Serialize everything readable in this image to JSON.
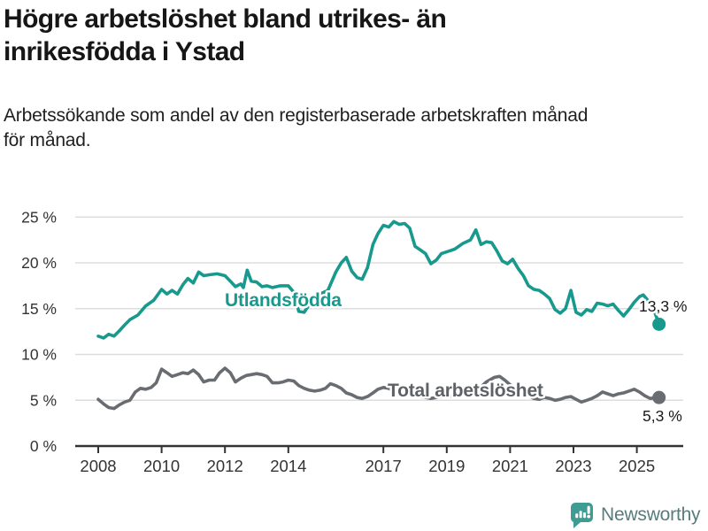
{
  "header": {
    "title": "Högre arbetslöshet bland utrikes- än inrikesfödda i Ystad",
    "subtitle": "Arbetssökande som andel av den registerbaserade arbetskraften månad för månad."
  },
  "footer": {
    "brand": "Newsworthy",
    "brand_icon": "speech-bubble-bar-chart-icon"
  },
  "colors": {
    "accent_teal": "#18998E",
    "line_gray": "#696C70",
    "label_gray": "#5E6166",
    "grid": "#DDDDDD",
    "axis": "#333333",
    "text_dark": "#1A1A1A",
    "logo_teal": "#3E9C94",
    "logo_text": "#567D7B"
  },
  "chart_data": {
    "type": "line",
    "title": "Högre arbetslöshet bland utrikes- än inrikesfödda i Ystad",
    "subtitle": "Arbetssökande som andel av den registerbaserade arbetskraften månad för månad.",
    "xlabel": "",
    "ylabel": "",
    "grid": true,
    "legend_position": "inline-labels",
    "x_axis": {
      "tick_labels": [
        "2008",
        "2010",
        "2012",
        "2014",
        "2017",
        "2019",
        "2021",
        "2023",
        "2025"
      ],
      "tick_years": [
        2008,
        2010,
        2012,
        2014,
        2017,
        2019,
        2021,
        2023,
        2025
      ],
      "range": [
        2007.3,
        2026.4
      ]
    },
    "y_axis": {
      "tick_labels": [
        "0 %",
        "5 %",
        "10 %",
        "15 %",
        "20 %",
        "25 %"
      ],
      "tick_values": [
        0,
        5,
        10,
        15,
        20,
        25
      ],
      "ylim": [
        0,
        27.4
      ],
      "unit": "%"
    },
    "series": [
      {
        "name": "Total arbetslöshet",
        "color": "#696C70",
        "label_color": "#5E6166",
        "end_label": "5,3 %",
        "end_value": 5.3,
        "points": [
          [
            2008.0,
            5.1
          ],
          [
            2008.17,
            4.6
          ],
          [
            2008.33,
            4.2
          ],
          [
            2008.5,
            4.1
          ],
          [
            2008.67,
            4.5
          ],
          [
            2008.83,
            4.8
          ],
          [
            2009.0,
            5.0
          ],
          [
            2009.17,
            5.9
          ],
          [
            2009.33,
            6.3
          ],
          [
            2009.5,
            6.2
          ],
          [
            2009.67,
            6.4
          ],
          [
            2009.83,
            6.9
          ],
          [
            2010.0,
            8.4
          ],
          [
            2010.17,
            8.0
          ],
          [
            2010.33,
            7.6
          ],
          [
            2010.5,
            7.8
          ],
          [
            2010.67,
            8.0
          ],
          [
            2010.83,
            7.9
          ],
          [
            2011.0,
            8.3
          ],
          [
            2011.17,
            7.8
          ],
          [
            2011.33,
            7.0
          ],
          [
            2011.5,
            7.2
          ],
          [
            2011.67,
            7.2
          ],
          [
            2011.83,
            8.0
          ],
          [
            2012.0,
            8.5
          ],
          [
            2012.17,
            8.0
          ],
          [
            2012.33,
            7.0
          ],
          [
            2012.5,
            7.4
          ],
          [
            2012.67,
            7.7
          ],
          [
            2012.83,
            7.8
          ],
          [
            2013.0,
            7.9
          ],
          [
            2013.17,
            7.8
          ],
          [
            2013.33,
            7.6
          ],
          [
            2013.5,
            6.9
          ],
          [
            2013.67,
            6.9
          ],
          [
            2013.83,
            7.0
          ],
          [
            2014.0,
            7.2
          ],
          [
            2014.17,
            7.1
          ],
          [
            2014.33,
            6.6
          ],
          [
            2014.5,
            6.3
          ],
          [
            2014.67,
            6.1
          ],
          [
            2014.83,
            6.0
          ],
          [
            2015.0,
            6.1
          ],
          [
            2015.17,
            6.3
          ],
          [
            2015.33,
            6.8
          ],
          [
            2015.5,
            6.6
          ],
          [
            2015.67,
            6.3
          ],
          [
            2015.83,
            5.8
          ],
          [
            2016.0,
            5.6
          ],
          [
            2016.17,
            5.3
          ],
          [
            2016.33,
            5.2
          ],
          [
            2016.5,
            5.4
          ],
          [
            2016.67,
            5.8
          ],
          [
            2016.83,
            6.2
          ],
          [
            2017.0,
            6.4
          ],
          [
            2017.17,
            6.3
          ],
          [
            2017.33,
            6.0
          ],
          [
            2017.5,
            5.8
          ],
          [
            2017.67,
            5.7
          ],
          [
            2017.83,
            5.6
          ],
          [
            2018.0,
            5.5
          ],
          [
            2018.17,
            5.4
          ],
          [
            2018.33,
            5.3
          ],
          [
            2018.5,
            5.2
          ],
          [
            2018.67,
            5.3
          ],
          [
            2018.83,
            5.4
          ],
          [
            2019.0,
            5.4
          ],
          [
            2019.25,
            5.5
          ],
          [
            2019.5,
            5.6
          ],
          [
            2019.75,
            5.8
          ],
          [
            2020.0,
            6.2
          ],
          [
            2020.25,
            7.0
          ],
          [
            2020.5,
            7.5
          ],
          [
            2020.67,
            7.6
          ],
          [
            2020.83,
            7.2
          ],
          [
            2021.0,
            6.7
          ],
          [
            2021.17,
            6.3
          ],
          [
            2021.33,
            6.0
          ],
          [
            2021.5,
            5.6
          ],
          [
            2021.75,
            5.2
          ],
          [
            2021.92,
            5.1
          ],
          [
            2022.08,
            5.3
          ],
          [
            2022.25,
            5.2
          ],
          [
            2022.42,
            5.0
          ],
          [
            2022.58,
            5.1
          ],
          [
            2022.75,
            5.3
          ],
          [
            2022.92,
            5.4
          ],
          [
            2023.08,
            5.1
          ],
          [
            2023.25,
            4.8
          ],
          [
            2023.42,
            5.0
          ],
          [
            2023.58,
            5.2
          ],
          [
            2023.75,
            5.5
          ],
          [
            2023.92,
            5.9
          ],
          [
            2024.08,
            5.7
          ],
          [
            2024.25,
            5.5
          ],
          [
            2024.42,
            5.7
          ],
          [
            2024.58,
            5.8
          ],
          [
            2024.75,
            6.0
          ],
          [
            2024.92,
            6.2
          ],
          [
            2025.08,
            5.9
          ],
          [
            2025.25,
            5.5
          ],
          [
            2025.42,
            5.2
          ],
          [
            2025.7,
            5.3
          ]
        ]
      },
      {
        "name": "Utlandsfödda",
        "color": "#18998E",
        "label_color": "#18998E",
        "end_label": "13,3 %",
        "end_value": 13.3,
        "points": [
          [
            2008.0,
            12.0
          ],
          [
            2008.17,
            11.8
          ],
          [
            2008.33,
            12.2
          ],
          [
            2008.5,
            12.0
          ],
          [
            2008.67,
            12.6
          ],
          [
            2008.83,
            13.2
          ],
          [
            2009.0,
            13.8
          ],
          [
            2009.25,
            14.3
          ],
          [
            2009.5,
            15.3
          ],
          [
            2009.75,
            15.9
          ],
          [
            2010.0,
            17.1
          ],
          [
            2010.17,
            16.6
          ],
          [
            2010.33,
            17.0
          ],
          [
            2010.5,
            16.6
          ],
          [
            2010.67,
            17.6
          ],
          [
            2010.83,
            18.3
          ],
          [
            2011.0,
            17.8
          ],
          [
            2011.17,
            19.0
          ],
          [
            2011.33,
            18.6
          ],
          [
            2011.5,
            18.7
          ],
          [
            2011.75,
            18.8
          ],
          [
            2012.0,
            18.6
          ],
          [
            2012.17,
            18.0
          ],
          [
            2012.33,
            17.4
          ],
          [
            2012.5,
            17.7
          ],
          [
            2012.58,
            17.3
          ],
          [
            2012.7,
            19.2
          ],
          [
            2012.83,
            18.0
          ],
          [
            2013.0,
            17.9
          ],
          [
            2013.17,
            17.4
          ],
          [
            2013.33,
            17.5
          ],
          [
            2013.5,
            17.3
          ],
          [
            2013.75,
            17.5
          ],
          [
            2014.0,
            17.5
          ],
          [
            2014.17,
            16.8
          ],
          [
            2014.33,
            14.7
          ],
          [
            2014.5,
            14.6
          ],
          [
            2014.67,
            15.5
          ],
          [
            2014.83,
            16.2
          ],
          [
            2015.0,
            16.6
          ],
          [
            2015.25,
            17.0
          ],
          [
            2015.5,
            19.0
          ],
          [
            2015.67,
            20.0
          ],
          [
            2015.83,
            20.6
          ],
          [
            2016.0,
            19.1
          ],
          [
            2016.17,
            18.4
          ],
          [
            2016.33,
            18.2
          ],
          [
            2016.5,
            19.5
          ],
          [
            2016.67,
            22.0
          ],
          [
            2016.83,
            23.2
          ],
          [
            2017.0,
            24.1
          ],
          [
            2017.17,
            23.9
          ],
          [
            2017.33,
            24.5
          ],
          [
            2017.5,
            24.2
          ],
          [
            2017.67,
            24.3
          ],
          [
            2017.83,
            23.8
          ],
          [
            2018.0,
            21.8
          ],
          [
            2018.17,
            21.4
          ],
          [
            2018.33,
            21.0
          ],
          [
            2018.5,
            19.9
          ],
          [
            2018.67,
            20.3
          ],
          [
            2018.83,
            21.0
          ],
          [
            2019.0,
            21.2
          ],
          [
            2019.25,
            21.5
          ],
          [
            2019.5,
            22.1
          ],
          [
            2019.75,
            22.5
          ],
          [
            2019.92,
            23.6
          ],
          [
            2020.08,
            22.0
          ],
          [
            2020.25,
            22.3
          ],
          [
            2020.42,
            22.2
          ],
          [
            2020.58,
            21.3
          ],
          [
            2020.75,
            20.2
          ],
          [
            2020.92,
            19.9
          ],
          [
            2021.08,
            20.4
          ],
          [
            2021.25,
            19.4
          ],
          [
            2021.42,
            18.6
          ],
          [
            2021.58,
            17.5
          ],
          [
            2021.75,
            17.1
          ],
          [
            2021.92,
            17.0
          ],
          [
            2022.08,
            16.6
          ],
          [
            2022.25,
            16.1
          ],
          [
            2022.42,
            14.9
          ],
          [
            2022.58,
            14.5
          ],
          [
            2022.75,
            15.0
          ],
          [
            2022.92,
            17.0
          ],
          [
            2023.08,
            14.6
          ],
          [
            2023.25,
            14.3
          ],
          [
            2023.42,
            14.9
          ],
          [
            2023.58,
            14.7
          ],
          [
            2023.75,
            15.6
          ],
          [
            2023.92,
            15.5
          ],
          [
            2024.08,
            15.3
          ],
          [
            2024.25,
            15.5
          ],
          [
            2024.42,
            14.8
          ],
          [
            2024.58,
            14.2
          ],
          [
            2024.75,
            14.9
          ],
          [
            2024.92,
            15.7
          ],
          [
            2025.08,
            16.3
          ],
          [
            2025.2,
            16.5
          ],
          [
            2025.35,
            15.9
          ],
          [
            2025.5,
            15.2
          ],
          [
            2025.7,
            13.3
          ]
        ]
      }
    ]
  }
}
